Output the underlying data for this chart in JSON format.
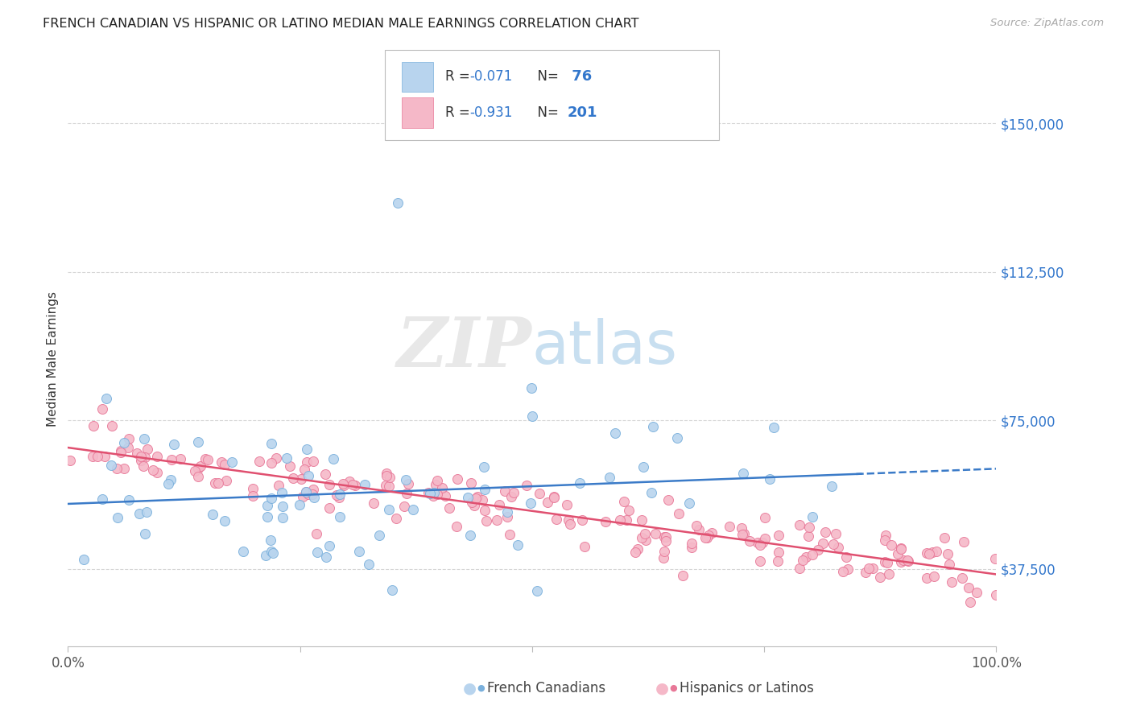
{
  "title": "FRENCH CANADIAN VS HISPANIC OR LATINO MEDIAN MALE EARNINGS CORRELATION CHART",
  "source": "Source: ZipAtlas.com",
  "ylabel": "Median Male Earnings",
  "ytick_labels": [
    "$37,500",
    "$75,000",
    "$112,500",
    "$150,000"
  ],
  "ytick_values": [
    37500,
    75000,
    112500,
    150000
  ],
  "ymin": 18000,
  "ymax": 163000,
  "xmin": 0.0,
  "xmax": 1.0,
  "blue_R": -0.071,
  "blue_N": 76,
  "pink_R": -0.931,
  "pink_N": 201,
  "legend_label_blue": "French Canadians",
  "legend_label_pink": "Hispanics or Latinos",
  "blue_fill": "#b8d4ee",
  "blue_edge": "#7ab0dc",
  "pink_fill": "#f5b8c8",
  "pink_edge": "#e87898",
  "trend_blue": "#3b7bc8",
  "trend_pink": "#e05070",
  "title_color": "#222222",
  "ylabel_color": "#333333",
  "ytick_color": "#3377cc",
  "source_color": "#aaaaaa",
  "watermark_color": "#e8e8e8",
  "grid_color": "#cccccc",
  "background_color": "#ffffff",
  "legend_text_color": "#333333",
  "legend_value_color": "#3377cc",
  "seed": 12
}
